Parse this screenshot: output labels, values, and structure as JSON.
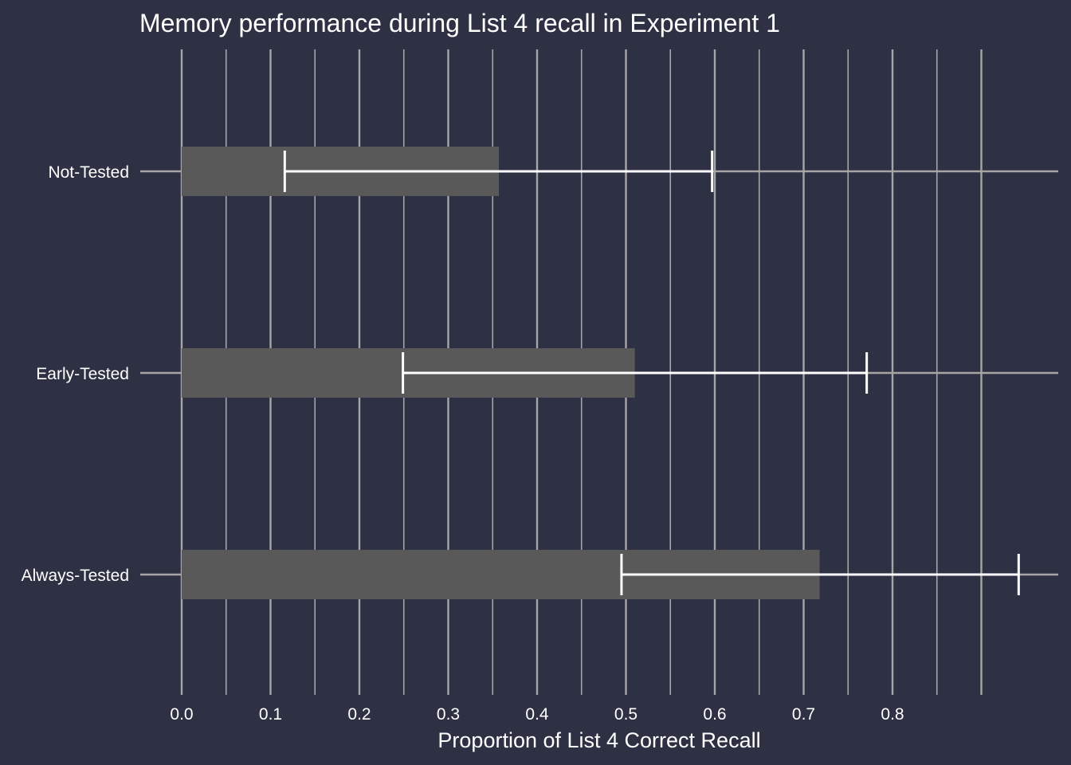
{
  "colors": {
    "background": "#2e3044",
    "bar": "#595959",
    "grid": "#a6a6a6",
    "error_bar": "#ffffff",
    "text": "#ffffff"
  },
  "chart_data": {
    "type": "bar",
    "orientation": "horizontal",
    "title": "Memory performance during List 4 recall in Experiment 1",
    "xlabel": "Proportion of List 4 Correct Recall",
    "ylabel": "",
    "xlim": [
      0,
      0.9
    ],
    "x_ticks": [
      0.0,
      0.1,
      0.2,
      0.3,
      0.4,
      0.5,
      0.6,
      0.7,
      0.8
    ],
    "x_tick_labels": [
      "0.0",
      "0.1",
      "0.2",
      "0.3",
      "0.4",
      "0.5",
      "0.6",
      "0.7",
      "0.8"
    ],
    "grid": true,
    "legend": "none",
    "categories": [
      "Not-Tested",
      "Early-Tested",
      "Always-Tested"
    ],
    "values": [
      0.357,
      0.51,
      0.718
    ],
    "error_low": [
      0.116,
      0.249,
      0.495
    ],
    "error_high": [
      0.597,
      0.771,
      0.942
    ]
  }
}
